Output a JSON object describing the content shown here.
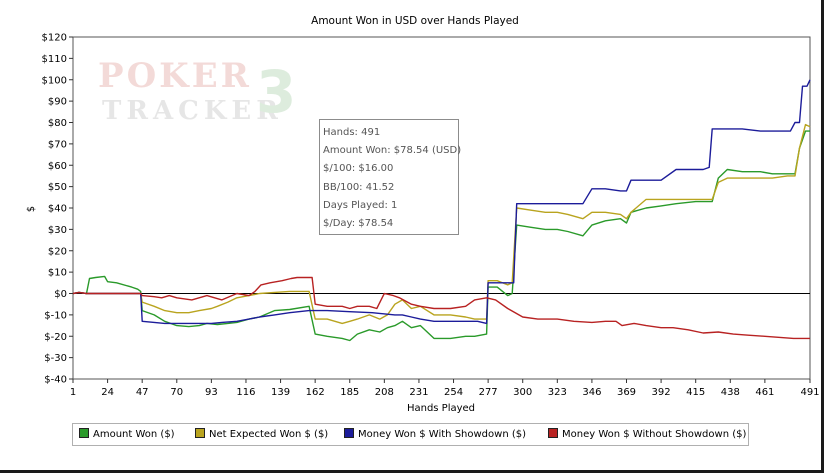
{
  "chart_data": {
    "type": "line",
    "title": "Amount Won in USD over Hands Played",
    "xlabel": "Hands Played",
    "ylabel": "$",
    "xlim": [
      1,
      491
    ],
    "ylim": [
      -40,
      120
    ],
    "x_ticks": [
      1,
      24,
      47,
      70,
      93,
      116,
      139,
      162,
      185,
      208,
      231,
      254,
      277,
      300,
      323,
      346,
      369,
      392,
      415,
      438,
      461,
      491
    ],
    "y_ticks": [
      -40,
      -30,
      -20,
      -10,
      0,
      10,
      20,
      30,
      40,
      50,
      60,
      70,
      80,
      90,
      100,
      110,
      120
    ],
    "y_tick_labels": [
      "$-40",
      "$-30",
      "$-20",
      "$-10",
      "$0",
      "$10",
      "$20",
      "$30",
      "$40",
      "$50",
      "$60",
      "$70",
      "$80",
      "$90",
      "$100",
      "$110",
      "$120"
    ],
    "grid": false,
    "legend_position": "bottom",
    "series": [
      {
        "name": "Amount Won ($)",
        "color": "#2a9a2a",
        "points": [
          [
            1,
            0
          ],
          [
            5,
            0.5
          ],
          [
            10,
            0
          ],
          [
            12,
            7
          ],
          [
            16,
            7.5
          ],
          [
            22,
            8
          ],
          [
            24,
            5.5
          ],
          [
            30,
            5
          ],
          [
            40,
            3
          ],
          [
            44,
            2
          ],
          [
            46,
            1
          ],
          [
            47,
            -8
          ],
          [
            55,
            -10
          ],
          [
            62,
            -13
          ],
          [
            70,
            -15
          ],
          [
            78,
            -15.5
          ],
          [
            85,
            -15
          ],
          [
            90,
            -14
          ],
          [
            97,
            -14.5
          ],
          [
            104,
            -14
          ],
          [
            110,
            -13.5
          ],
          [
            118,
            -12
          ],
          [
            125,
            -11
          ],
          [
            135,
            -8
          ],
          [
            145,
            -7.5
          ],
          [
            158,
            -6
          ],
          [
            162,
            -19
          ],
          [
            170,
            -20
          ],
          [
            180,
            -21
          ],
          [
            185,
            -22
          ],
          [
            190,
            -19
          ],
          [
            198,
            -17
          ],
          [
            205,
            -18
          ],
          [
            210,
            -16
          ],
          [
            215,
            -15
          ],
          [
            220,
            -13
          ],
          [
            226,
            -16
          ],
          [
            232,
            -15
          ],
          [
            241,
            -21
          ],
          [
            252,
            -21
          ],
          [
            262,
            -20
          ],
          [
            268,
            -20
          ],
          [
            276,
            -19
          ],
          [
            277,
            3
          ],
          [
            283,
            3
          ],
          [
            290,
            -1
          ],
          [
            293,
            0
          ],
          [
            296,
            32
          ],
          [
            305,
            31
          ],
          [
            315,
            30
          ],
          [
            323,
            30
          ],
          [
            330,
            29
          ],
          [
            340,
            27
          ],
          [
            346,
            32
          ],
          [
            355,
            34
          ],
          [
            365,
            35
          ],
          [
            369,
            33
          ],
          [
            372,
            38
          ],
          [
            382,
            40
          ],
          [
            392,
            41
          ],
          [
            402,
            42
          ],
          [
            415,
            43
          ],
          [
            426,
            43
          ],
          [
            430,
            54
          ],
          [
            436,
            58
          ],
          [
            446,
            57
          ],
          [
            458,
            57
          ],
          [
            466,
            56
          ],
          [
            476,
            56
          ],
          [
            481,
            56
          ],
          [
            484,
            68
          ],
          [
            488,
            76
          ],
          [
            491,
            76
          ]
        ]
      },
      {
        "name": "Net Expected Won $ ($)",
        "color": "#b9a41f",
        "points": [
          [
            1,
            0
          ],
          [
            5,
            0.5
          ],
          [
            10,
            0
          ],
          [
            12,
            0
          ],
          [
            24,
            0
          ],
          [
            40,
            0
          ],
          [
            46,
            0
          ],
          [
            47,
            -4
          ],
          [
            55,
            -6
          ],
          [
            62,
            -8
          ],
          [
            70,
            -9
          ],
          [
            78,
            -9
          ],
          [
            85,
            -8
          ],
          [
            93,
            -7
          ],
          [
            97,
            -6
          ],
          [
            104,
            -4
          ],
          [
            110,
            -2
          ],
          [
            118,
            -1
          ],
          [
            125,
            0
          ],
          [
            135,
            0.5
          ],
          [
            145,
            1
          ],
          [
            158,
            1
          ],
          [
            162,
            -12
          ],
          [
            170,
            -12
          ],
          [
            180,
            -14
          ],
          [
            185,
            -13
          ],
          [
            190,
            -12
          ],
          [
            198,
            -10
          ],
          [
            205,
            -12
          ],
          [
            210,
            -10
          ],
          [
            215,
            -5
          ],
          [
            220,
            -3
          ],
          [
            226,
            -7
          ],
          [
            232,
            -6
          ],
          [
            241,
            -10
          ],
          [
            252,
            -10
          ],
          [
            262,
            -11
          ],
          [
            268,
            -12
          ],
          [
            276,
            -12
          ],
          [
            277,
            6
          ],
          [
            283,
            6
          ],
          [
            290,
            4
          ],
          [
            293,
            5
          ],
          [
            296,
            40
          ],
          [
            305,
            39
          ],
          [
            315,
            38
          ],
          [
            323,
            38
          ],
          [
            330,
            37
          ],
          [
            340,
            35
          ],
          [
            346,
            38
          ],
          [
            355,
            38
          ],
          [
            365,
            37
          ],
          [
            369,
            35
          ],
          [
            372,
            38
          ],
          [
            382,
            44
          ],
          [
            392,
            44
          ],
          [
            402,
            44
          ],
          [
            415,
            44
          ],
          [
            426,
            44
          ],
          [
            430,
            52
          ],
          [
            436,
            54
          ],
          [
            446,
            54
          ],
          [
            458,
            54
          ],
          [
            466,
            54
          ],
          [
            476,
            55
          ],
          [
            481,
            55
          ],
          [
            484,
            68
          ],
          [
            488,
            79
          ],
          [
            491,
            78
          ]
        ]
      },
      {
        "name": "Money Won $ With Showdown ($)",
        "color": "#1c1c9a",
        "points": [
          [
            1,
            0
          ],
          [
            5,
            0.5
          ],
          [
            10,
            0
          ],
          [
            12,
            0
          ],
          [
            24,
            0
          ],
          [
            40,
            0
          ],
          [
            46,
            0
          ],
          [
            47,
            -13
          ],
          [
            55,
            -13.5
          ],
          [
            62,
            -14
          ],
          [
            70,
            -14
          ],
          [
            78,
            -14
          ],
          [
            85,
            -14
          ],
          [
            93,
            -14
          ],
          [
            100,
            -13.5
          ],
          [
            110,
            -13
          ],
          [
            118,
            -12
          ],
          [
            125,
            -11
          ],
          [
            135,
            -10
          ],
          [
            145,
            -9
          ],
          [
            158,
            -8
          ],
          [
            162,
            -8
          ],
          [
            170,
            -8
          ],
          [
            185,
            -8.5
          ],
          [
            200,
            -9
          ],
          [
            215,
            -10
          ],
          [
            220,
            -10
          ],
          [
            226,
            -11
          ],
          [
            232,
            -12
          ],
          [
            241,
            -13
          ],
          [
            252,
            -13
          ],
          [
            262,
            -13
          ],
          [
            270,
            -13
          ],
          [
            276,
            -14
          ],
          [
            277,
            5
          ],
          [
            283,
            5
          ],
          [
            290,
            5
          ],
          [
            294,
            5
          ],
          [
            296,
            42
          ],
          [
            305,
            42
          ],
          [
            315,
            42
          ],
          [
            323,
            42
          ],
          [
            330,
            42
          ],
          [
            340,
            42
          ],
          [
            346,
            49
          ],
          [
            355,
            49
          ],
          [
            365,
            48
          ],
          [
            369,
            48
          ],
          [
            372,
            53
          ],
          [
            382,
            53
          ],
          [
            392,
            53
          ],
          [
            402,
            58
          ],
          [
            415,
            58
          ],
          [
            420,
            58
          ],
          [
            424,
            59
          ],
          [
            426,
            77
          ],
          [
            436,
            77
          ],
          [
            446,
            77
          ],
          [
            458,
            76
          ],
          [
            466,
            76
          ],
          [
            476,
            76
          ],
          [
            478,
            76
          ],
          [
            481,
            80
          ],
          [
            484,
            80
          ],
          [
            486,
            97
          ],
          [
            489,
            97
          ],
          [
            491,
            100
          ]
        ]
      },
      {
        "name": "Money Won $ Without Showdown ($)",
        "color": "#b82222",
        "points": [
          [
            1,
            0
          ],
          [
            5,
            0.5
          ],
          [
            10,
            0
          ],
          [
            12,
            0
          ],
          [
            24,
            0
          ],
          [
            40,
            0
          ],
          [
            46,
            0
          ],
          [
            47,
            -1
          ],
          [
            55,
            -1.5
          ],
          [
            60,
            -2
          ],
          [
            65,
            -1
          ],
          [
            70,
            -2
          ],
          [
            80,
            -3
          ],
          [
            90,
            -1
          ],
          [
            100,
            -3
          ],
          [
            110,
            0
          ],
          [
            118,
            -1
          ],
          [
            122,
            1
          ],
          [
            126,
            4
          ],
          [
            132,
            5
          ],
          [
            140,
            6
          ],
          [
            146,
            7
          ],
          [
            150,
            7.5
          ],
          [
            160,
            7.5
          ],
          [
            162,
            -5
          ],
          [
            170,
            -6
          ],
          [
            180,
            -6
          ],
          [
            185,
            -7
          ],
          [
            190,
            -6
          ],
          [
            198,
            -6
          ],
          [
            203,
            -7
          ],
          [
            208,
            0
          ],
          [
            214,
            -1
          ],
          [
            218,
            -2
          ],
          [
            226,
            -5
          ],
          [
            232,
            -6
          ],
          [
            241,
            -7
          ],
          [
            252,
            -7
          ],
          [
            262,
            -6
          ],
          [
            268,
            -3
          ],
          [
            276,
            -2
          ],
          [
            282,
            -3
          ],
          [
            290,
            -7
          ],
          [
            300,
            -11
          ],
          [
            310,
            -12
          ],
          [
            323,
            -12
          ],
          [
            334,
            -13
          ],
          [
            346,
            -13.5
          ],
          [
            355,
            -13
          ],
          [
            362,
            -13
          ],
          [
            366,
            -15
          ],
          [
            374,
            -14
          ],
          [
            382,
            -15
          ],
          [
            392,
            -16
          ],
          [
            400,
            -16
          ],
          [
            410,
            -17
          ],
          [
            420,
            -18.5
          ],
          [
            430,
            -18
          ],
          [
            440,
            -19
          ],
          [
            450,
            -19.5
          ],
          [
            461,
            -20
          ],
          [
            470,
            -20.5
          ],
          [
            480,
            -21
          ],
          [
            491,
            -21
          ]
        ]
      }
    ]
  },
  "tooltip": {
    "lines": [
      "Hands: 491",
      "Amount Won: $78.54 (USD)",
      "$/100: $16.00",
      "BB/100: 41.52",
      "Days Played: 1",
      "$/Day: $78.54"
    ]
  },
  "legend": {
    "items": [
      {
        "label": "Amount Won ($)",
        "color": "#2a9a2a"
      },
      {
        "label": "Net Expected Won $ ($)",
        "color": "#b9a41f"
      },
      {
        "label": "Money Won $ With Showdown ($)",
        "color": "#1c1c9a"
      },
      {
        "label": "Money Won $ Without Showdown ($)",
        "color": "#b82222"
      }
    ]
  },
  "watermark": {
    "line1": "POKER",
    "line2": "TRACKER",
    "mark": "3"
  }
}
